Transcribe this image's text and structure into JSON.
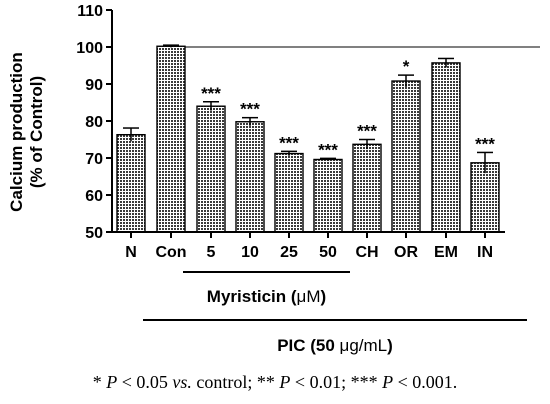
{
  "chart_data": {
    "type": "bar",
    "ylabel_line1": "Calcium production",
    "ylabel_line2": "(% of Control)",
    "xlabel": "",
    "ylim": [
      50,
      110
    ],
    "yticks": [
      50,
      60,
      70,
      80,
      90,
      100,
      110
    ],
    "reference_line": 100,
    "categories": [
      "N",
      "Con",
      "5",
      "10",
      "25",
      "50",
      "CH",
      "OR",
      "EM",
      "IN"
    ],
    "values": [
      76.3,
      100.2,
      84.0,
      79.8,
      71.2,
      69.6,
      73.7,
      90.8,
      95.7,
      68.7
    ],
    "errors": [
      1.8,
      0.3,
      1.2,
      1.1,
      0.6,
      0.3,
      1.3,
      1.6,
      1.2,
      2.8
    ],
    "significance": [
      "",
      "",
      "***",
      "***",
      "***",
      "***",
      "***",
      "*",
      "",
      "***"
    ],
    "bar_fill": "#8c8c8c",
    "groups": [
      {
        "label_prefix": "Myristicin (",
        "label_unit": "μM",
        "label_suffix": ")",
        "from": 2,
        "to": 5
      },
      {
        "label_prefix": "PIC (50 ",
        "label_unit": "μg/mL",
        "label_suffix": ")",
        "from": 1,
        "to": 9
      }
    ]
  },
  "footnote": {
    "p1_star": "* ",
    "p_letter": "P",
    "p1_rest": " < 0.05 ",
    "vs": "vs.",
    "p1_tail": " control; ** ",
    "p2_rest": " < 0.01; *** ",
    "p3_rest": " < 0.001."
  }
}
